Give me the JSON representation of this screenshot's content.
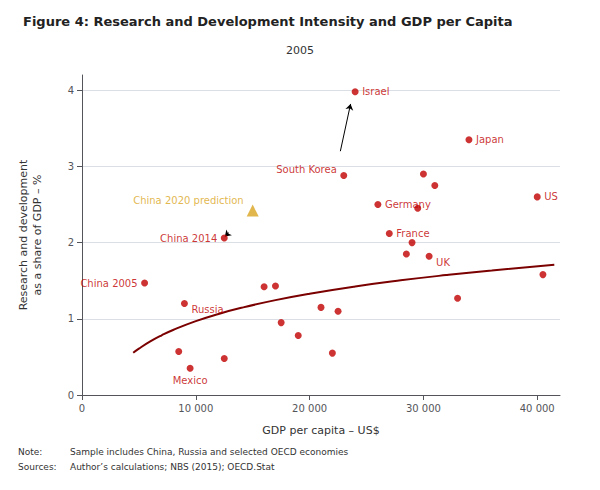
{
  "chart_data": {
    "type": "scatter",
    "title": "Figure 4: Research and Development Intensity and GDP per Capita",
    "subtitle": "2005",
    "xlabel": "GDP per capita – US$",
    "ylabel": "Research and development\nas a share of GDP – %",
    "xlim": [
      0,
      42000
    ],
    "ylim": [
      0,
      4.2
    ],
    "xticks": [
      0,
      {
        "value": 10000,
        "label": "10 000"
      },
      {
        "value": 20000,
        "label": "20 000"
      },
      {
        "value": 30000,
        "label": "30 000"
      },
      {
        "value": 40000,
        "label": "40 000"
      }
    ],
    "yticks": [
      0,
      1,
      2,
      3,
      4
    ],
    "grid": "y",
    "series": [
      {
        "type": "line",
        "color": "#7b0000",
        "x": [
          4500,
          5000,
          6000,
          7000,
          8000,
          10000,
          12000,
          14000,
          17000,
          20000,
          24000,
          28000,
          32000,
          36000,
          41500
        ],
        "values": [
          0.5542,
          0.6089,
          0.7037,
          0.7839,
          0.8533,
          0.9694,
          1.0642,
          1.1443,
          1.2453,
          1.3298,
          1.4246,
          1.5048,
          1.5742,
          1.6355,
          1.7094
        ]
      },
      {
        "type": "scatter",
        "color": "#c00000",
        "marker": "circle",
        "x": [
          5500,
          12500,
          9000,
          9500,
          8500,
          12500,
          16000,
          17000,
          17500,
          19000,
          22000,
          21000,
          22500,
          23000,
          24000,
          26000,
          27000,
          28500,
          29000,
          29500,
          30000,
          31000,
          30500,
          33000,
          34000,
          40000,
          40500
        ],
        "values": [
          1.47,
          2.06,
          1.2,
          0.35,
          0.57,
          0.48,
          1.42,
          1.43,
          0.95,
          0.78,
          0.55,
          1.15,
          1.1,
          2.88,
          3.98,
          2.5,
          2.12,
          1.85,
          2.0,
          2.45,
          2.9,
          2.75,
          1.82,
          1.27,
          3.35,
          2.6,
          1.58
        ]
      },
      {
        "type": "scatter",
        "color": "#daa520",
        "marker": "triangle",
        "x": [
          15000
        ],
        "values": [
          2.42
        ]
      }
    ],
    "annotations": [
      {
        "text": "China 2005",
        "x": 5500,
        "y": 1.47,
        "color": "#c00000"
      },
      {
        "text": "China 2014",
        "x": 12500,
        "y": 2.06,
        "color": "#c00000"
      },
      {
        "text": "Russia",
        "x": 9000,
        "y": 1.2,
        "color": "#c00000"
      },
      {
        "text": "Mexico",
        "x": 9500,
        "y": 0.35,
        "color": "#c00000"
      },
      {
        "text": "South Korea",
        "x": 23000,
        "y": 2.88,
        "color": "#c00000"
      },
      {
        "text": "Israel",
        "x": 24000,
        "y": 3.98,
        "color": "#c00000"
      },
      {
        "text": "Germany",
        "x": 26000,
        "y": 2.5,
        "color": "#c00000"
      },
      {
        "text": "France",
        "x": 27000,
        "y": 2.12,
        "color": "#c00000"
      },
      {
        "text": "UK",
        "x": 30500,
        "y": 1.82,
        "color": "#c00000"
      },
      {
        "text": "Japan",
        "x": 34000,
        "y": 3.35,
        "color": "#c00000"
      },
      {
        "text": "US",
        "x": 40000,
        "y": 2.6,
        "color": "#c00000"
      },
      {
        "text": "China 2020 prediction",
        "x": 15000,
        "y": 2.42,
        "color": "#daa520"
      }
    ],
    "arrows": [
      {
        "from": [
          12900,
          2.13
        ],
        "to": [
          12550,
          2.08
        ]
      },
      {
        "from": [
          22700,
          3.2
        ],
        "to": [
          23600,
          3.82
        ]
      }
    ],
    "notes": [
      {
        "label": "Note:",
        "text": "Sample includes China, Russia and selected OECD economies"
      },
      {
        "label": "Sources:",
        "text": "Author’s calculations; NBS (2015); OECD.Stat"
      }
    ]
  }
}
